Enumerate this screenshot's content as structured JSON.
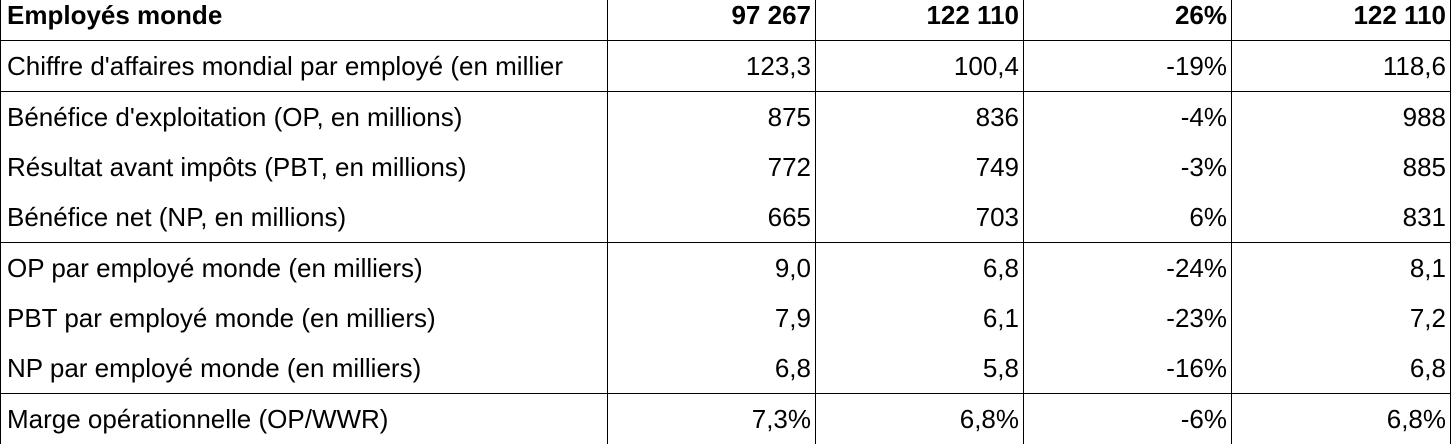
{
  "table": {
    "rows": [
      {
        "label": "Employés monde",
        "c1": "97 267",
        "c2": "122 110",
        "c3": "26%",
        "c4": "122 110",
        "bold": true
      },
      {
        "label": "Chiffre d'affaires mondial par employé (en millier",
        "c1": "123,3",
        "c2": "100,4",
        "c3": "-19%",
        "c4": "118,6"
      },
      {
        "label": "Bénéfice d'exploitation (OP, en millions)",
        "c1": "875",
        "c2": "836",
        "c3": "-4%",
        "c4": "988"
      },
      {
        "label": "Résultat avant impôts (PBT, en millions)",
        "c1": "772",
        "c2": "749",
        "c3": "-3%",
        "c4": "885"
      },
      {
        "label": "Bénéfice net (NP, en millions)",
        "c1": "665",
        "c2": "703",
        "c3": "6%",
        "c4": "831"
      },
      {
        "label": "OP par employé monde (en milliers)",
        "c1": "9,0",
        "c2": "6,8",
        "c3": "-24%",
        "c4": "8,1"
      },
      {
        "label": "PBT par employé monde (en milliers)",
        "c1": "7,9",
        "c2": "6,1",
        "c3": "-23%",
        "c4": "7,2"
      },
      {
        "label": "NP par employé monde (en milliers)",
        "c1": "6,8",
        "c2": "5,8",
        "c3": "-16%",
        "c4": "6,8"
      },
      {
        "label": "Marge opérationnelle (OP/WWR)",
        "c1": "7,3%",
        "c2": "6,8%",
        "c3": "-6%",
        "c4": "6,8%"
      }
    ]
  }
}
